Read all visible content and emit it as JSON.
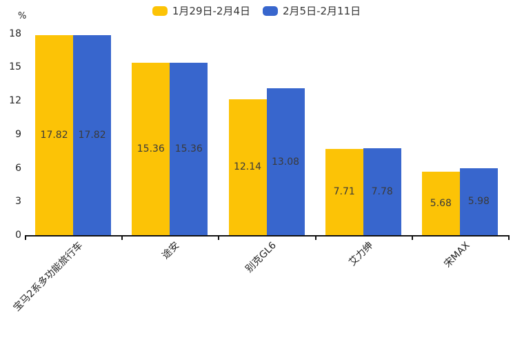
{
  "chart_data": {
    "type": "bar",
    "title": "",
    "xlabel": "",
    "ylabel": "%",
    "categories": [
      "宝马2系多功能旅行车",
      "途安",
      "别克GL6",
      "艾力绅",
      "宋MAX"
    ],
    "series": [
      {
        "name": "1月29日-2月4日",
        "color": "#FCC306",
        "values": [
          17.82,
          15.36,
          12.14,
          7.71,
          5.68
        ]
      },
      {
        "name": "2月5日-2月11日",
        "color": "#3866CD",
        "values": [
          17.82,
          15.36,
          13.08,
          7.78,
          5.98
        ]
      }
    ],
    "ylim": [
      0,
      18
    ],
    "yticks": [
      0,
      3,
      6,
      9,
      12,
      15,
      18
    ],
    "grid": false,
    "legend_position": "top",
    "value_label_position": "inside-center",
    "value_label_decimals": 2
  },
  "colors": {
    "background": "#ffffff",
    "axis_line": "#111111",
    "axis_text": "#222222",
    "value_label_text": "#3a3a3a",
    "legend_text": "#333333"
  }
}
